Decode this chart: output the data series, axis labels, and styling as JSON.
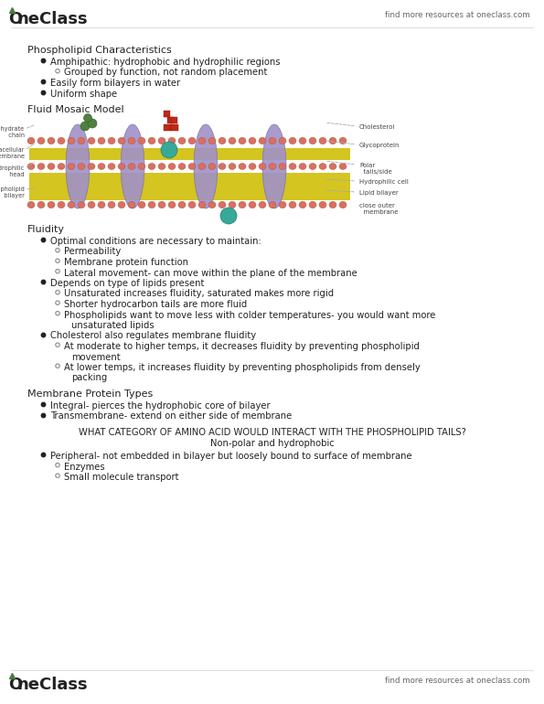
{
  "bg_color": "#ffffff",
  "header_right_text": "find more resources at oneclass.com",
  "footer_right_text": "find more resources at oneclass.com",
  "section1_title": "Phospholipid Characteristics",
  "section1_bullets": [
    {
      "level": 1,
      "text": "Amphipathic: hydrophobic and hydrophilic regions"
    },
    {
      "level": 2,
      "text": "Grouped by function, not random placement"
    },
    {
      "level": 1,
      "text": "Easily form bilayers in water"
    },
    {
      "level": 1,
      "text": "Uniform shape"
    }
  ],
  "section2_title": "Fluid Mosaic Model",
  "section3_title": "Fluidity",
  "section3_bullets": [
    {
      "level": 1,
      "text": "Optimal conditions are necessary to maintain:"
    },
    {
      "level": 2,
      "text": "Permeability"
    },
    {
      "level": 2,
      "text": "Membrane protein function"
    },
    {
      "level": 2,
      "text": "Lateral movement- can move within the plane of the membrane"
    },
    {
      "level": 1,
      "text": "Depends on type of lipids present"
    },
    {
      "level": 2,
      "text": "Unsaturated increases fluidity, saturated makes more rigid"
    },
    {
      "level": 2,
      "text": "Shorter hydrocarbon tails are more fluid"
    },
    {
      "level": 2,
      "text": "Phospholipids want to move less with colder temperatures- you would want more"
    },
    {
      "level": 3,
      "text": "unsaturated lipids"
    },
    {
      "level": 1,
      "text": "Cholesterol also regulates membrane fluidity"
    },
    {
      "level": 2,
      "text": "At moderate to higher temps, it decreases fluidity by preventing phospholipid"
    },
    {
      "level": 3,
      "text": "movement"
    },
    {
      "level": 2,
      "text": "At lower temps, it increases fluidity by preventing phospholipids from densely"
    },
    {
      "level": 3,
      "text": "packing"
    }
  ],
  "section4_title": "Membrane Protein Types",
  "section4_bullets": [
    {
      "level": 1,
      "text": "Integral- pierces the hydrophobic core of bilayer"
    },
    {
      "level": 1,
      "text": "Transmembrane- extend on either side of membrane"
    }
  ],
  "question_text": "WHAT CATEGORY OF AMINO ACID WOULD INTERACT WITH THE PHOSPHOLIPID TAILS?",
  "answer_text": "Non-polar and hydrophobic",
  "section5_bullets": [
    {
      "level": 1,
      "text": "Peripheral- not embedded in bilayer but loosely bound to surface of membrane"
    },
    {
      "level": 2,
      "text": "Enzymes"
    },
    {
      "level": 2,
      "text": "Small molecule transport"
    }
  ],
  "text_color": "#222222",
  "logo_green": "#4a7c3f",
  "logo_text_color": "#222222",
  "header_line_color": "#dddddd",
  "footer_line_color": "#dddddd"
}
